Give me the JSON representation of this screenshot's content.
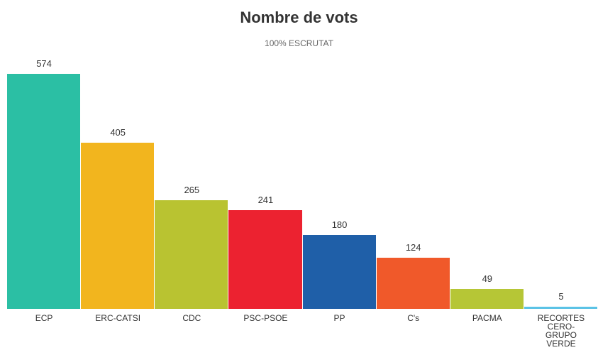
{
  "chart_data": {
    "type": "bar",
    "title": "Nombre de vots",
    "subtitle": "100% ESCRUTAT",
    "categories": [
      "ECP",
      "ERC-CATSI",
      "CDC",
      "PSC-PSOE",
      "PP",
      "C's",
      "PACMA",
      "RECORTES CERO-GRUPO VERDE"
    ],
    "values": [
      574,
      405,
      265,
      241,
      180,
      124,
      49,
      5
    ],
    "colors": [
      "#2bbfa4",
      "#f2b51e",
      "#b9c331",
      "#ec2230",
      "#1f5fa8",
      "#f0592a",
      "#b6c636",
      "#5bc3e6"
    ]
  }
}
